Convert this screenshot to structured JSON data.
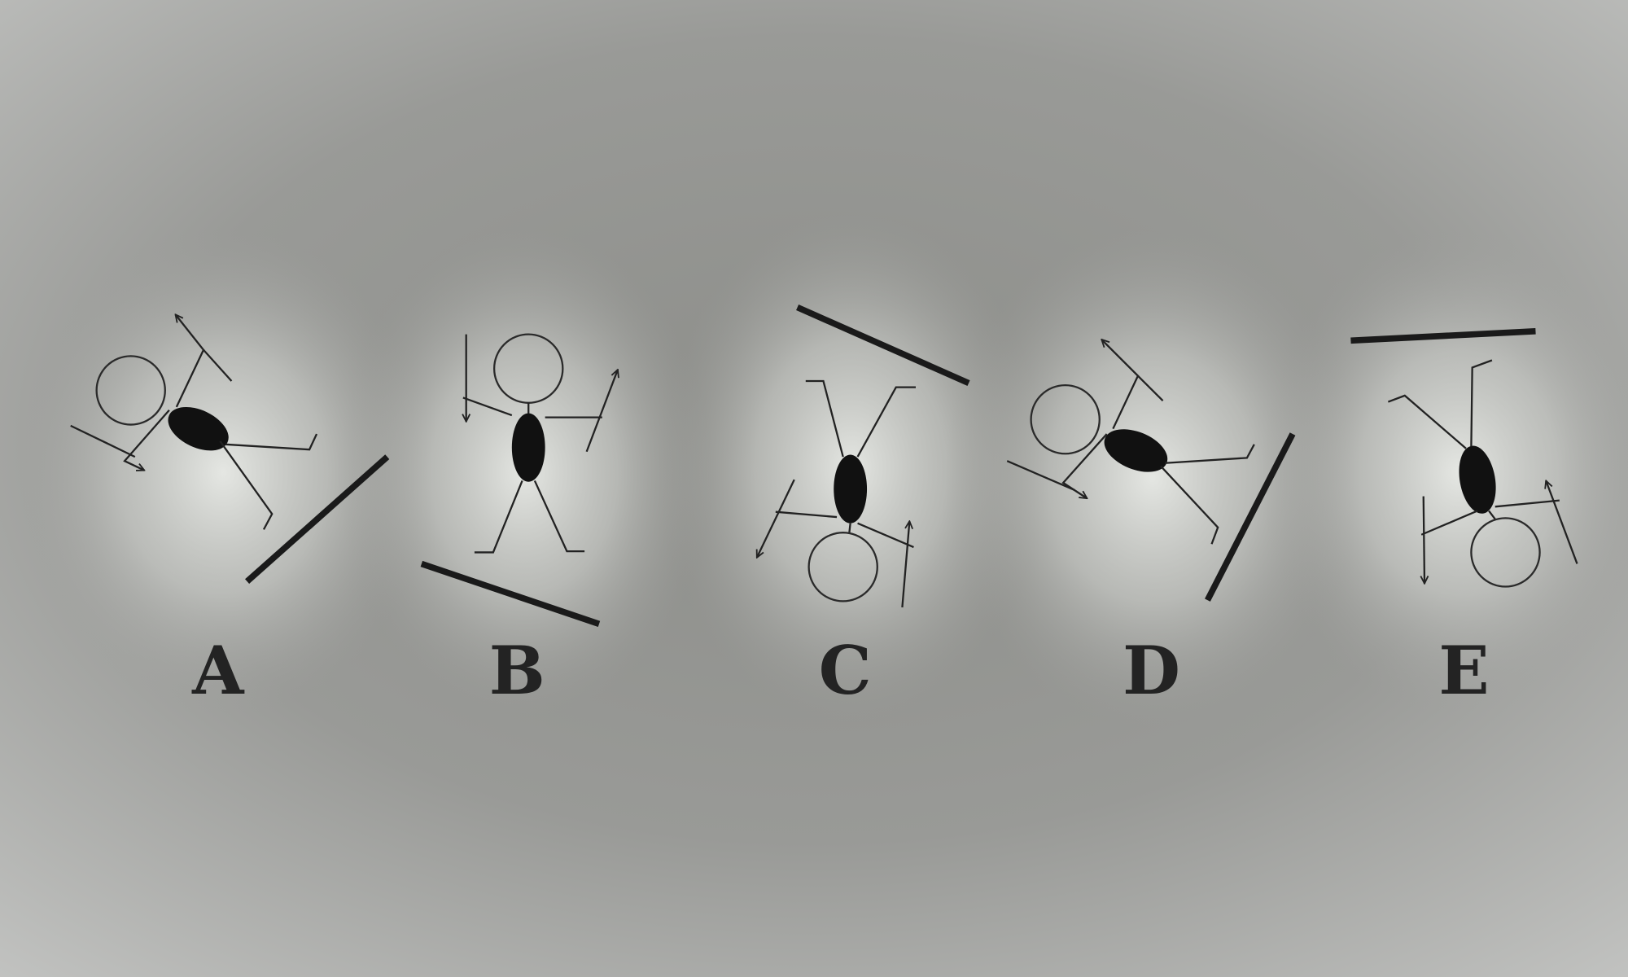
{
  "options": [
    {
      "label": "A"
    },
    {
      "label": "B"
    },
    {
      "label": "C"
    },
    {
      "label": "D"
    },
    {
      "label": "E"
    }
  ]
}
